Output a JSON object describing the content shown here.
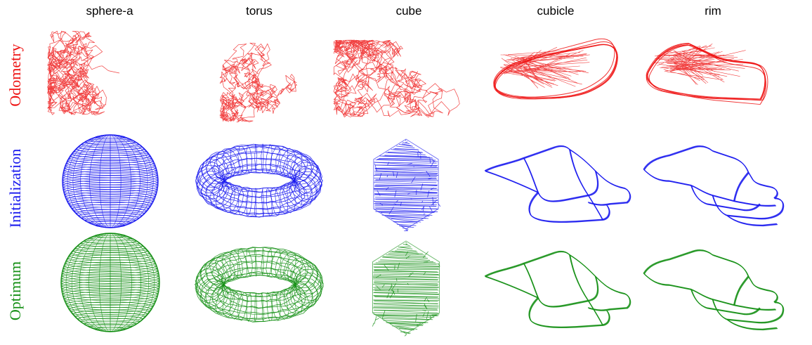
{
  "columns": [
    "sphere-a",
    "torus",
    "cube",
    "cubicle",
    "rim"
  ],
  "rows": [
    {
      "label": "Odometry",
      "color": "#ee1111"
    },
    {
      "label": "Initialization",
      "color": "#1a1aee"
    },
    {
      "label": "Optimum",
      "color": "#148f14"
    }
  ]
}
